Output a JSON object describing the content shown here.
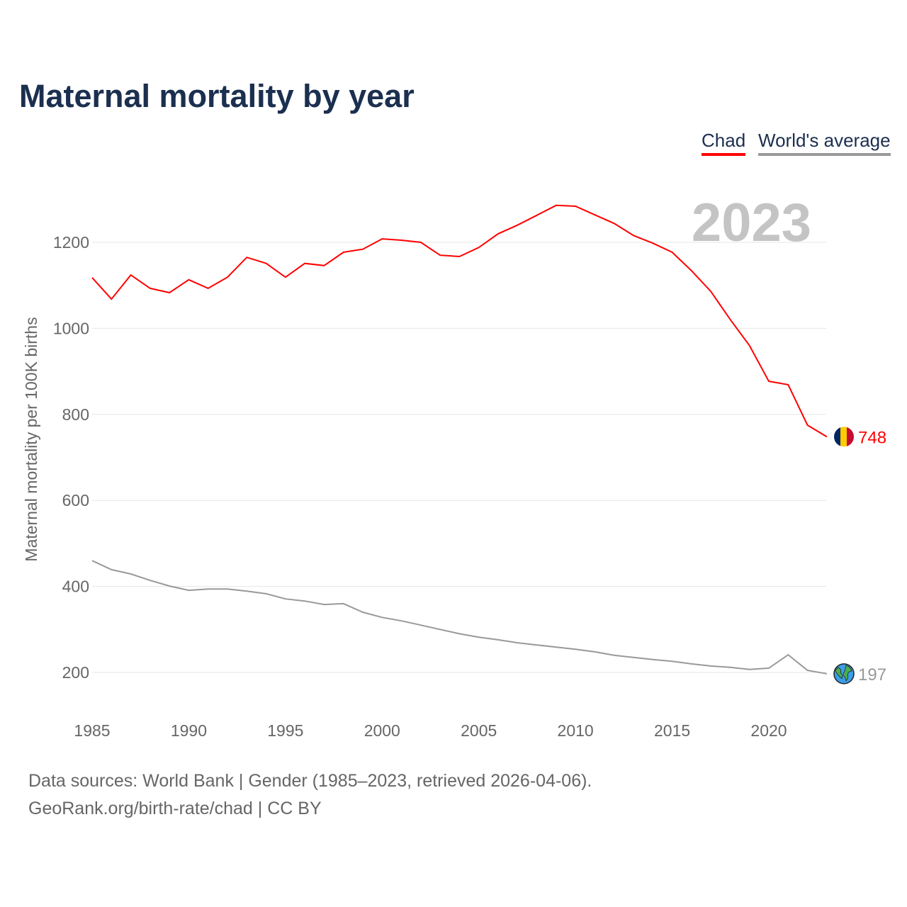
{
  "title": "Maternal mortality by year",
  "legend": {
    "chad": "Chad",
    "world": "World's average"
  },
  "year_label": "2023",
  "sources": {
    "line1": "Data sources: World Bank | Gender (1985–2023, retrieved 2026-04-06).",
    "line2": "GeoRank.org/birth-rate/chad | CC BY"
  },
  "chart_data": {
    "type": "line",
    "title": "Maternal mortality by year",
    "xlabel": "",
    "ylabel": "Maternal mortality per 100K births",
    "xlim": [
      1985,
      2023
    ],
    "ylim": [
      100,
      1350
    ],
    "grid": true,
    "legend_position": "top-right",
    "x_ticks": [
      1985,
      1990,
      1995,
      2000,
      2005,
      2010,
      2015,
      2020
    ],
    "y_ticks": [
      200,
      400,
      600,
      800,
      1000,
      1200
    ],
    "x": [
      1985,
      1986,
      1987,
      1988,
      1989,
      1990,
      1991,
      1992,
      1993,
      1994,
      1995,
      1996,
      1997,
      1998,
      1999,
      2000,
      2001,
      2002,
      2003,
      2004,
      2005,
      2006,
      2007,
      2008,
      2009,
      2010,
      2011,
      2012,
      2013,
      2014,
      2015,
      2016,
      2017,
      2018,
      2019,
      2020,
      2021,
      2022,
      2023
    ],
    "series": [
      {
        "name": "Chad",
        "color": "#ff0000",
        "end_label": "748",
        "values": [
          1118,
          1068,
          1124,
          1093,
          1083,
          1113,
          1093,
          1119,
          1165,
          1151,
          1119,
          1151,
          1146,
          1177,
          1184,
          1208,
          1205,
          1200,
          1170,
          1167,
          1188,
          1220,
          1240,
          1263,
          1286,
          1284,
          1264,
          1244,
          1216,
          1198,
          1177,
          1134,
          1086,
          1021,
          960,
          877,
          869,
          775,
          748
        ]
      },
      {
        "name": "World's average",
        "color": "#999999",
        "end_label": "197",
        "values": [
          460,
          439,
          429,
          414,
          401,
          391,
          394,
          394,
          389,
          383,
          371,
          366,
          358,
          360,
          340,
          328,
          320,
          310,
          300,
          290,
          282,
          276,
          269,
          264,
          259,
          254,
          248,
          240,
          235,
          230,
          226,
          220,
          215,
          212,
          207,
          210,
          241,
          205,
          197
        ]
      }
    ]
  }
}
